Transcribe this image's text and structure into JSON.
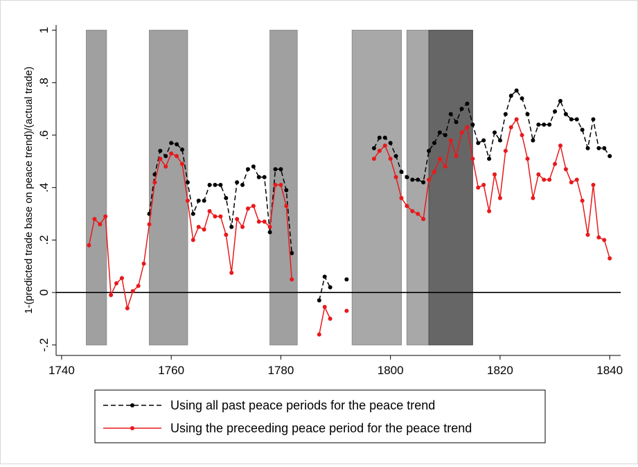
{
  "chart_data": {
    "type": "line",
    "ylabel": "1-(predicted trade base on peace trend)/(actual trade)",
    "xlabel": "",
    "xlim": [
      1739,
      1842
    ],
    "ylim": [
      -0.24,
      1.02
    ],
    "xticks": [
      1740,
      1760,
      1780,
      1800,
      1820,
      1840
    ],
    "xtick_labels": [
      "1740",
      "1760",
      "1780",
      "1800",
      "1820",
      "1840"
    ],
    "yticks": [
      -0.2,
      0,
      0.2,
      0.4,
      0.6,
      0.8,
      1
    ],
    "ytick_labels": [
      "-.2",
      "0",
      ".2",
      ".4",
      ".6",
      ".8",
      "1"
    ],
    "zero_line": 0,
    "grid": false,
    "legend_position": "bottom",
    "shaded_periods": [
      {
        "start": 1744.5,
        "end": 1748.2,
        "shade": "medium",
        "color": "#a0a0a0"
      },
      {
        "start": 1756.0,
        "end": 1763.0,
        "shade": "medium",
        "color": "#a0a0a0"
      },
      {
        "start": 1778.0,
        "end": 1783.0,
        "shade": "medium",
        "color": "#a0a0a0"
      },
      {
        "start": 1793.0,
        "end": 1802.0,
        "shade": "medium",
        "color": "#a8a8a8"
      },
      {
        "start": 1803.0,
        "end": 1807.0,
        "shade": "medium",
        "color": "#a8a8a8"
      },
      {
        "start": 1807.0,
        "end": 1815.0,
        "shade": "dark",
        "color": "#666666"
      }
    ],
    "series": [
      {
        "name": "Using all past peace periods for the peace trend",
        "color": "#000000",
        "dash": "dashed",
        "segments": [
          {
            "x": [
              1756,
              1757,
              1758,
              1759,
              1760,
              1761,
              1762,
              1763,
              1764,
              1765,
              1766,
              1767,
              1768,
              1769,
              1770,
              1771,
              1772,
              1773,
              1774,
              1775,
              1776,
              1777,
              1778,
              1779,
              1780,
              1781,
              1782
            ],
            "y": [
              0.3,
              0.45,
              0.54,
              0.52,
              0.57,
              0.565,
              0.545,
              0.42,
              0.3,
              0.35,
              0.35,
              0.41,
              0.41,
              0.41,
              0.36,
              0.25,
              0.42,
              0.41,
              0.47,
              0.48,
              0.44,
              0.44,
              0.23,
              0.47,
              0.47,
              0.39,
              0.15
            ]
          },
          {
            "x": [
              1787,
              1788,
              1789
            ],
            "y": [
              -0.03,
              0.06,
              0.02
            ]
          },
          {
            "x": [
              1792
            ],
            "y": [
              0.05
            ]
          },
          {
            "x": [
              1797,
              1798,
              1799,
              1800,
              1801,
              1802,
              1803,
              1804,
              1805,
              1806,
              1807,
              1808,
              1809,
              1810,
              1811,
              1812,
              1813,
              1814,
              1815,
              1816,
              1817,
              1818,
              1819,
              1820,
              1821,
              1822,
              1823,
              1824,
              1825,
              1826,
              1827,
              1828,
              1829,
              1830,
              1831,
              1832,
              1833,
              1834,
              1835,
              1836,
              1837,
              1838,
              1839,
              1840
            ],
            "y": [
              0.55,
              0.59,
              0.59,
              0.57,
              0.52,
              0.46,
              0.44,
              0.43,
              0.43,
              0.42,
              0.54,
              0.57,
              0.61,
              0.6,
              0.68,
              0.65,
              0.7,
              0.72,
              0.64,
              0.57,
              0.58,
              0.51,
              0.61,
              0.58,
              0.68,
              0.75,
              0.77,
              0.74,
              0.68,
              0.58,
              0.64,
              0.64,
              0.64,
              0.69,
              0.73,
              0.68,
              0.66,
              0.66,
              0.62,
              0.55,
              0.66,
              0.55,
              0.55,
              0.52
            ]
          }
        ]
      },
      {
        "name": "Using the preceeding peace period for the peace trend",
        "color": "#e8191b",
        "dash": "solid",
        "segments": [
          {
            "x": [
              1745,
              1746,
              1747,
              1748,
              1749,
              1750,
              1751,
              1752,
              1753,
              1754,
              1755,
              1756,
              1757,
              1758,
              1759,
              1760,
              1761,
              1762,
              1763,
              1764,
              1765,
              1766,
              1767,
              1768,
              1769,
              1770,
              1771,
              1772,
              1773,
              1774,
              1775,
              1776,
              1777,
              1778,
              1779,
              1780,
              1781,
              1782
            ],
            "y": [
              0.18,
              0.28,
              0.26,
              0.29,
              -0.01,
              0.035,
              0.055,
              -0.06,
              0.005,
              0.025,
              0.11,
              0.26,
              0.42,
              0.51,
              0.48,
              0.53,
              0.52,
              0.49,
              0.35,
              0.2,
              0.25,
              0.24,
              0.31,
              0.29,
              0.29,
              0.22,
              0.075,
              0.28,
              0.25,
              0.32,
              0.33,
              0.27,
              0.27,
              0.25,
              0.41,
              0.41,
              0.33,
              0.05
            ]
          },
          {
            "x": [
              1787,
              1788,
              1789
            ],
            "y": [
              -0.16,
              -0.055,
              -0.1
            ]
          },
          {
            "x": [
              1792
            ],
            "y": [
              -0.07
            ]
          },
          {
            "x": [
              1797,
              1798,
              1799,
              1800,
              1801,
              1802,
              1803,
              1804,
              1805,
              1806,
              1807,
              1808,
              1809,
              1810,
              1811,
              1812,
              1813,
              1814,
              1815,
              1816,
              1817,
              1818,
              1819,
              1820,
              1821,
              1822,
              1823,
              1824,
              1825,
              1826,
              1827,
              1828,
              1829,
              1830,
              1831,
              1832,
              1833,
              1834,
              1835,
              1836,
              1837,
              1838,
              1839,
              1840
            ],
            "y": [
              0.51,
              0.54,
              0.56,
              0.51,
              0.44,
              0.36,
              0.33,
              0.31,
              0.3,
              0.28,
              0.43,
              0.46,
              0.51,
              0.48,
              0.58,
              0.52,
              0.61,
              0.63,
              0.51,
              0.4,
              0.41,
              0.31,
              0.45,
              0.36,
              0.54,
              0.63,
              0.66,
              0.6,
              0.51,
              0.36,
              0.45,
              0.43,
              0.43,
              0.49,
              0.56,
              0.47,
              0.42,
              0.43,
              0.35,
              0.22,
              0.41,
              0.21,
              0.2,
              0.13
            ]
          }
        ]
      }
    ]
  }
}
